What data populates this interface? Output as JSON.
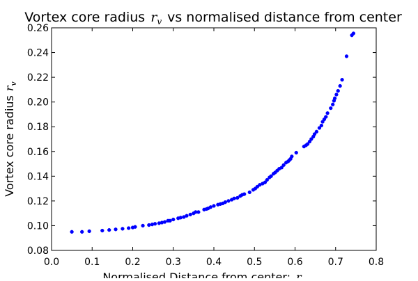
{
  "chart_data": {
    "type": "scatter",
    "title_prefix": "Vortex core radius",
    "title_symbol": "r",
    "title_subscript": "v",
    "title_suffix": "vs normalised distance from center",
    "xlabel_prefix": "Normalised Distance from center:",
    "xlabel_symbol": "r",
    "ylabel_prefix": "Vortex core radius",
    "ylabel_symbol": "r",
    "ylabel_subscript": "v",
    "xlim": [
      0.0,
      0.8
    ],
    "ylim": [
      0.08,
      0.26
    ],
    "xticks": [
      "0.0",
      "0.1",
      "0.2",
      "0.3",
      "0.4",
      "0.5",
      "0.6",
      "0.7",
      "0.8"
    ],
    "yticks": [
      "0.08",
      "0.10",
      "0.12",
      "0.14",
      "0.16",
      "0.18",
      "0.20",
      "0.22",
      "0.24",
      "0.26"
    ],
    "grid": false,
    "marker_color": "#0000ff",
    "series": [
      {
        "x": [
          0.05,
          0.075,
          0.093,
          0.125,
          0.142,
          0.158,
          0.175,
          0.19,
          0.2,
          0.206,
          0.225,
          0.24,
          0.248,
          0.255,
          0.265,
          0.272,
          0.279,
          0.287,
          0.292,
          0.3,
          0.312,
          0.318,
          0.326,
          0.333,
          0.342,
          0.35,
          0.355,
          0.362,
          0.376,
          0.382,
          0.386,
          0.392,
          0.4,
          0.41,
          0.416,
          0.422,
          0.428,
          0.436,
          0.444,
          0.45,
          0.458,
          0.465,
          0.47,
          0.475,
          0.488,
          0.497,
          0.502,
          0.507,
          0.513,
          0.52,
          0.526,
          0.531,
          0.537,
          0.541,
          0.547,
          0.551,
          0.556,
          0.561,
          0.567,
          0.572,
          0.578,
          0.583,
          0.586,
          0.589,
          0.592,
          0.603,
          0.622,
          0.627,
          0.631,
          0.636,
          0.64,
          0.645,
          0.648,
          0.653,
          0.66,
          0.665,
          0.668,
          0.672,
          0.676,
          0.68,
          0.688,
          0.693,
          0.696,
          0.698,
          0.702,
          0.706,
          0.711,
          0.716,
          0.727,
          0.74,
          0.744
        ],
        "y": [
          0.095,
          0.095,
          0.0955,
          0.096,
          0.0965,
          0.097,
          0.0975,
          0.098,
          0.0985,
          0.099,
          0.1,
          0.1005,
          0.101,
          0.1015,
          0.102,
          0.1025,
          0.103,
          0.104,
          0.104,
          0.105,
          0.106,
          0.1065,
          0.107,
          0.108,
          0.109,
          0.11,
          0.111,
          0.111,
          0.113,
          0.1135,
          0.114,
          0.115,
          0.116,
          0.117,
          0.1175,
          0.118,
          0.119,
          0.12,
          0.121,
          0.122,
          0.1225,
          0.124,
          0.125,
          0.1255,
          0.127,
          0.129,
          0.13,
          0.1315,
          0.133,
          0.134,
          0.135,
          0.137,
          0.139,
          0.14,
          0.142,
          0.143,
          0.1445,
          0.146,
          0.147,
          0.149,
          0.151,
          0.152,
          0.153,
          0.154,
          0.156,
          0.159,
          0.164,
          0.165,
          0.166,
          0.168,
          0.17,
          0.172,
          0.174,
          0.176,
          0.179,
          0.181,
          0.184,
          0.186,
          0.188,
          0.191,
          0.195,
          0.198,
          0.201,
          0.203,
          0.206,
          0.209,
          0.213,
          0.218,
          0.237,
          0.254,
          0.2555
        ]
      }
    ]
  }
}
